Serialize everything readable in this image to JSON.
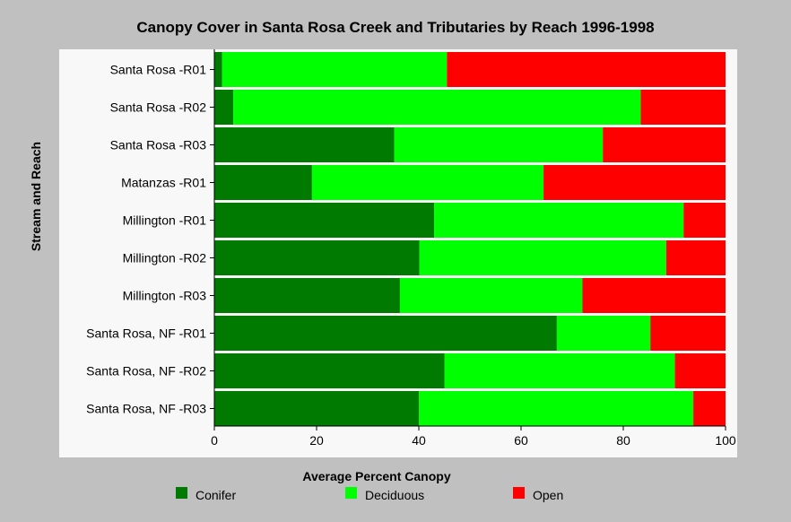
{
  "chart_data": {
    "type": "bar",
    "orientation": "horizontal",
    "stacked": true,
    "title": "Canopy Cover in Santa Rosa Creek and Tributaries by Reach 1996-1998",
    "xlabel": "Average Percent Canopy",
    "ylabel": "Stream and Reach",
    "xlim": [
      0,
      100
    ],
    "xticks": [
      0,
      20,
      40,
      60,
      80,
      100
    ],
    "grid": false,
    "legend_position": "bottom",
    "categories": [
      "Santa Rosa -R01",
      "Santa Rosa -R02",
      "Santa Rosa -R03",
      "Matanzas -R01",
      "Millington -R01",
      "Millington -R02",
      "Millington -R03",
      "Santa Rosa, NF -R01",
      "Santa Rosa, NF -R02",
      "Santa Rosa, NF -R03"
    ],
    "series": [
      {
        "name": "Conifer",
        "color": "#007a00",
        "values": [
          1.5,
          3.7,
          35.2,
          19.1,
          43.0,
          40.1,
          36.3,
          67.0,
          45.0,
          40.0
        ]
      },
      {
        "name": "Deciduous",
        "color": "#00ff00",
        "values": [
          44.0,
          79.7,
          40.8,
          45.3,
          48.8,
          48.3,
          35.7,
          18.3,
          45.1,
          53.7
        ]
      },
      {
        "name": "Open",
        "color": "#ff0000",
        "values": [
          54.5,
          16.6,
          24.0,
          35.6,
          8.2,
          11.6,
          28.0,
          14.7,
          9.9,
          6.3
        ]
      }
    ]
  }
}
